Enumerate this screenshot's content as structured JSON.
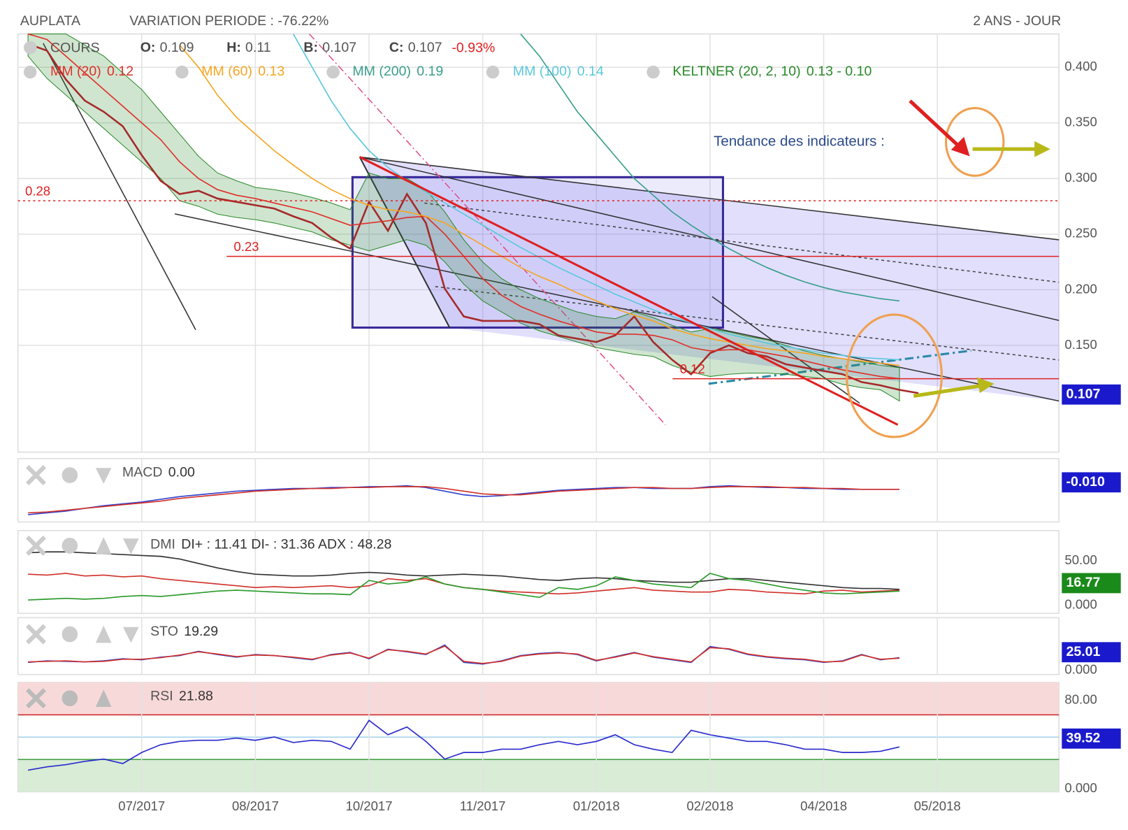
{
  "chart_data": [
    {
      "type": "line",
      "title": "AUPLATA",
      "subtitle": "VARIATION PERIODE : -76.22%",
      "period": "2 ANS - JOUR",
      "ohlc": [
        {
          "label": "O:",
          "value": 0.109
        },
        {
          "label": "H:",
          "value": 0.11
        },
        {
          "label": "B:",
          "value": 0.107
        },
        {
          "label": "C:",
          "value": 0.107
        }
      ],
      "change": "-0.93%",
      "ylim": [
        0.054,
        0.43
      ],
      "yticks": [
        {
          "value": 0.4,
          "label": "0.400"
        },
        {
          "value": 0.35,
          "label": "0.350"
        },
        {
          "value": 0.3,
          "label": "0.300"
        },
        {
          "value": 0.25,
          "label": "0.250"
        },
        {
          "value": 0.2,
          "label": "0.200"
        },
        {
          "value": 0.15,
          "label": "0.150"
        }
      ],
      "grid": true,
      "tag_color": "#1a1acc",
      "series": [
        {
          "name": "COURS",
          "color": "#a52a2a",
          "values": [
            0.421,
            0.415,
            0.389,
            0.37,
            0.36,
            0.347,
            0.321,
            0.298,
            0.286,
            0.289,
            0.282,
            0.279,
            0.276,
            0.273,
            0.266,
            0.26,
            0.247,
            0.237,
            0.279,
            0.253,
            0.286,
            0.26,
            0.201,
            0.176,
            0.172,
            0.172,
            0.172,
            0.169,
            0.159,
            0.156,
            0.153,
            0.159,
            0.176,
            0.153,
            0.137,
            0.124,
            0.143,
            0.15,
            0.143,
            0.14,
            0.133,
            0.13,
            0.127,
            0.124,
            0.117,
            0.114,
            0.11,
            0.107,
            null,
            null
          ]
        },
        {
          "name": "MM (20)",
          "legend_value": "0.12",
          "color": "#e0302a",
          "values": [
            0.43,
            0.425,
            0.41,
            0.395,
            0.38,
            0.365,
            0.35,
            0.335,
            0.315,
            0.3,
            0.29,
            0.285,
            0.282,
            0.278,
            0.274,
            0.27,
            0.264,
            0.258,
            0.26,
            0.262,
            0.265,
            0.266,
            0.25,
            0.23,
            0.21,
            0.195,
            0.185,
            0.178,
            0.172,
            0.167,
            0.162,
            0.16,
            0.16,
            0.159,
            0.155,
            0.148,
            0.145,
            0.146,
            0.146,
            0.143,
            0.14,
            0.136,
            0.132,
            0.128,
            0.125,
            0.122,
            0.12,
            null,
            null
          ]
        },
        {
          "name": "MM (60)",
          "legend_value": "0.13",
          "color": "#f5a623",
          "values": [
            null,
            null,
            null,
            null,
            null,
            null,
            null,
            null,
            0.42,
            0.4,
            0.375,
            0.355,
            0.34,
            0.325,
            0.312,
            0.3,
            0.29,
            0.282,
            0.276,
            0.272,
            0.27,
            0.266,
            0.26,
            0.25,
            0.24,
            0.23,
            0.22,
            0.212,
            0.205,
            0.197,
            0.19,
            0.183,
            0.177,
            0.172,
            0.165,
            0.16,
            0.156,
            0.153,
            0.15,
            0.147,
            0.145,
            0.143,
            0.14,
            0.138,
            0.136,
            0.134,
            0.132,
            null,
            null
          ]
        },
        {
          "name": "MM (200)",
          "legend_value": "0.19",
          "color": "#3a9e8c",
          "values": [
            null,
            null,
            null,
            null,
            null,
            null,
            null,
            null,
            null,
            null,
            null,
            null,
            null,
            null,
            null,
            null,
            null,
            null,
            null,
            null,
            null,
            null,
            null,
            null,
            null,
            null,
            0.43,
            0.41,
            0.385,
            0.36,
            0.34,
            0.32,
            0.3,
            0.285,
            0.27,
            0.258,
            0.247,
            0.237,
            0.228,
            0.22,
            0.213,
            0.207,
            0.202,
            0.198,
            0.195,
            0.192,
            0.19,
            null,
            null
          ]
        },
        {
          "name": "MM (100)",
          "legend_value": "0.14",
          "color": "#5bc8dc",
          "values": [
            null,
            null,
            null,
            null,
            null,
            null,
            null,
            null,
            null,
            null,
            null,
            null,
            null,
            null,
            0.43,
            0.4,
            0.37,
            0.345,
            0.325,
            0.31,
            0.298,
            0.288,
            0.278,
            0.268,
            0.258,
            0.248,
            0.238,
            0.229,
            0.22,
            0.212,
            0.204,
            0.196,
            0.189,
            0.182,
            0.176,
            0.17,
            0.165,
            0.16,
            0.156,
            0.152,
            0.149,
            0.146,
            0.143,
            0.141,
            0.139,
            0.138,
            0.137,
            null,
            null
          ]
        }
      ],
      "band": {
        "name": "KELTNER (20, 2, 10)",
        "legend_value": "0.13 - 0.10",
        "color": "#2a8a2a",
        "upper": [
          0.43,
          0.43,
          0.43,
          0.42,
          0.41,
          0.395,
          0.38,
          0.36,
          0.34,
          0.32,
          0.305,
          0.298,
          0.292,
          0.29,
          0.287,
          0.283,
          0.278,
          0.272,
          0.305,
          0.3,
          0.3,
          0.29,
          0.27,
          0.245,
          0.225,
          0.21,
          0.2,
          0.192,
          0.186,
          0.18,
          0.176,
          0.174,
          0.18,
          0.175,
          0.168,
          0.162,
          0.165,
          0.162,
          0.158,
          0.155,
          0.15,
          0.145,
          0.141,
          0.138,
          0.135,
          0.132,
          0.13,
          null,
          null
        ],
        "lower": [
          0.41,
          0.39,
          0.375,
          0.36,
          0.345,
          0.33,
          0.315,
          0.3,
          0.28,
          0.275,
          0.268,
          0.265,
          0.263,
          0.26,
          0.256,
          0.252,
          0.245,
          0.24,
          0.235,
          0.24,
          0.245,
          0.24,
          0.225,
          0.205,
          0.19,
          0.18,
          0.17,
          0.163,
          0.158,
          0.153,
          0.148,
          0.145,
          0.142,
          0.14,
          0.132,
          0.126,
          0.122,
          0.124,
          0.125,
          0.125,
          0.124,
          0.122,
          0.12,
          0.115,
          0.112,
          0.11,
          0.1,
          null,
          null
        ]
      },
      "levels": [
        0.28,
        0.23,
        0.12
      ],
      "annotation": "Tendance des indicateurs :"
    },
    {
      "type": "line",
      "title": "MACD",
      "header_value": "0.00",
      "tag": "-0.010",
      "tag_color": "#1a1acc",
      "ylim": [
        -0.04,
        0.03
      ],
      "series": [
        {
          "color": "#3344cc",
          "values": [
            -0.032,
            -0.03,
            -0.028,
            -0.025,
            -0.022,
            -0.02,
            -0.018,
            -0.015,
            -0.012,
            -0.01,
            -0.008,
            -0.006,
            -0.005,
            -0.004,
            -0.003,
            -0.003,
            -0.002,
            -0.002,
            -0.001,
            -0.001,
            0,
            -0.002,
            -0.006,
            -0.01,
            -0.012,
            -0.011,
            -0.009,
            -0.007,
            -0.005,
            -0.004,
            -0.003,
            -0.002,
            -0.002,
            -0.003,
            -0.003,
            -0.003,
            -0.001,
            0,
            -0.001,
            -0.002,
            -0.002,
            -0.003,
            -0.003,
            -0.004,
            -0.004,
            -0.004,
            -0.004,
            null,
            null
          ]
        },
        {
          "color": "#d0302a",
          "values": [
            -0.03,
            -0.029,
            -0.027,
            -0.025,
            -0.023,
            -0.021,
            -0.019,
            -0.017,
            -0.014,
            -0.012,
            -0.01,
            -0.008,
            -0.006,
            -0.005,
            -0.004,
            -0.003,
            -0.003,
            -0.002,
            -0.002,
            -0.001,
            -0.001,
            -0.001,
            -0.003,
            -0.006,
            -0.009,
            -0.01,
            -0.01,
            -0.008,
            -0.006,
            -0.005,
            -0.004,
            -0.003,
            -0.002,
            -0.002,
            -0.003,
            -0.003,
            -0.002,
            -0.001,
            -0.001,
            -0.001,
            -0.002,
            -0.002,
            -0.003,
            -0.003,
            -0.004,
            -0.004,
            -0.004,
            null,
            null
          ]
        }
      ]
    },
    {
      "type": "line",
      "title": "DMI",
      "header_value": "DI+ : 11.41 DI- : 31.36 ADX : 48.28",
      "tag": "16.77",
      "tag_color": "#1a8a1a",
      "ylim": [
        -8.9,
        83.9
      ],
      "yticks": [
        {
          "value": 50,
          "label": "50.00"
        },
        {
          "value": 0,
          "label": "0.000"
        }
      ],
      "series": [
        {
          "color": "#333333",
          "values": [
            59,
            60,
            60,
            59,
            58,
            57,
            56,
            55,
            52,
            47,
            42,
            38,
            35,
            34,
            33,
            33,
            34,
            36,
            37,
            36,
            34,
            33,
            34,
            35,
            34,
            33,
            31,
            29,
            28,
            30,
            31,
            30,
            28,
            27,
            26,
            26,
            28,
            30,
            30,
            28,
            26,
            24,
            22,
            20,
            19,
            19,
            18,
            null,
            null
          ]
        },
        {
          "color": "#d0302a",
          "values": [
            35,
            34,
            36,
            33,
            34,
            32,
            33,
            30,
            28,
            26,
            24,
            22,
            20,
            21,
            20,
            21,
            22,
            20,
            22,
            30,
            28,
            30,
            24,
            20,
            18,
            16,
            15,
            14,
            13,
            14,
            16,
            18,
            20,
            17,
            16,
            15,
            15,
            18,
            17,
            15,
            14,
            13,
            16,
            17,
            15,
            16,
            17,
            null,
            null
          ]
        },
        {
          "color": "#2a9a2a",
          "values": [
            6,
            7,
            8,
            7,
            8,
            10,
            11,
            10,
            12,
            14,
            16,
            17,
            16,
            15,
            14,
            13,
            13,
            12,
            28,
            24,
            26,
            32,
            24,
            20,
            18,
            15,
            12,
            9,
            20,
            18,
            22,
            32,
            28,
            24,
            22,
            20,
            36,
            30,
            28,
            24,
            20,
            17,
            14,
            13,
            14,
            15,
            16,
            null,
            null
          ]
        }
      ]
    },
    {
      "type": "line",
      "title": "STO",
      "header_value": "19.29",
      "tag": "25.01",
      "tag_color": "#1a1acc",
      "ylim": [
        -8,
        100
      ],
      "yticks": [
        {
          "value": 0,
          "label": "0.000"
        }
      ],
      "series": [
        {
          "color": "#3344cc",
          "values": [
            15,
            18,
            17,
            16,
            18,
            22,
            20,
            25,
            28,
            36,
            30,
            25,
            30,
            28,
            24,
            20,
            30,
            34,
            22,
            40,
            35,
            30,
            48,
            15,
            12,
            18,
            28,
            32,
            34,
            30,
            18,
            26,
            34,
            25,
            20,
            15,
            45,
            40,
            30,
            25,
            22,
            20,
            15,
            18,
            30,
            20,
            24,
            null,
            null
          ]
        },
        {
          "color": "#d0302a",
          "values": [
            16,
            17,
            18,
            16,
            17,
            21,
            21,
            24,
            29,
            35,
            31,
            26,
            29,
            28,
            25,
            21,
            29,
            33,
            23,
            39,
            36,
            31,
            46,
            17,
            13,
            17,
            27,
            31,
            33,
            31,
            19,
            25,
            33,
            26,
            21,
            16,
            43,
            41,
            31,
            26,
            23,
            21,
            16,
            17,
            29,
            21,
            23,
            null,
            null
          ]
        }
      ]
    },
    {
      "type": "line",
      "title": "RSI",
      "header_value": "21.88",
      "tag": "39.52",
      "tag_color": "#1a1acc",
      "ylim": [
        -2.6,
        96.3
      ],
      "yticks": [
        {
          "value": 80,
          "label": "80.00"
        },
        {
          "value": 0,
          "label": "0.000"
        }
      ],
      "categories": [
        null,
        null,
        null,
        null,
        null,
        null,
        "07/2017",
        null,
        null,
        null,
        null,
        null,
        "08/2017",
        null,
        null,
        null,
        null,
        null,
        "10/2017",
        null,
        null,
        null,
        null,
        null,
        "11/2017",
        null,
        null,
        null,
        null,
        null,
        "01/2018",
        null,
        null,
        null,
        null,
        null,
        "02/2018",
        null,
        null,
        null,
        null,
        null,
        "04/2018",
        null,
        null,
        null,
        null,
        null,
        "05/2018"
      ],
      "series": [
        {
          "color": "#2a2acc",
          "values": [
            17,
            20,
            22,
            25,
            27,
            23,
            33,
            40,
            43,
            44,
            44,
            46,
            44,
            47,
            42,
            44,
            43,
            36,
            62,
            49,
            56,
            43,
            27,
            33,
            33,
            36,
            36,
            40,
            43,
            40,
            43,
            49,
            40,
            36,
            33,
            53,
            49,
            46,
            43,
            43,
            40,
            36,
            36,
            33,
            33,
            34,
            38,
            null,
            null
          ]
        }
      ]
    }
  ]
}
